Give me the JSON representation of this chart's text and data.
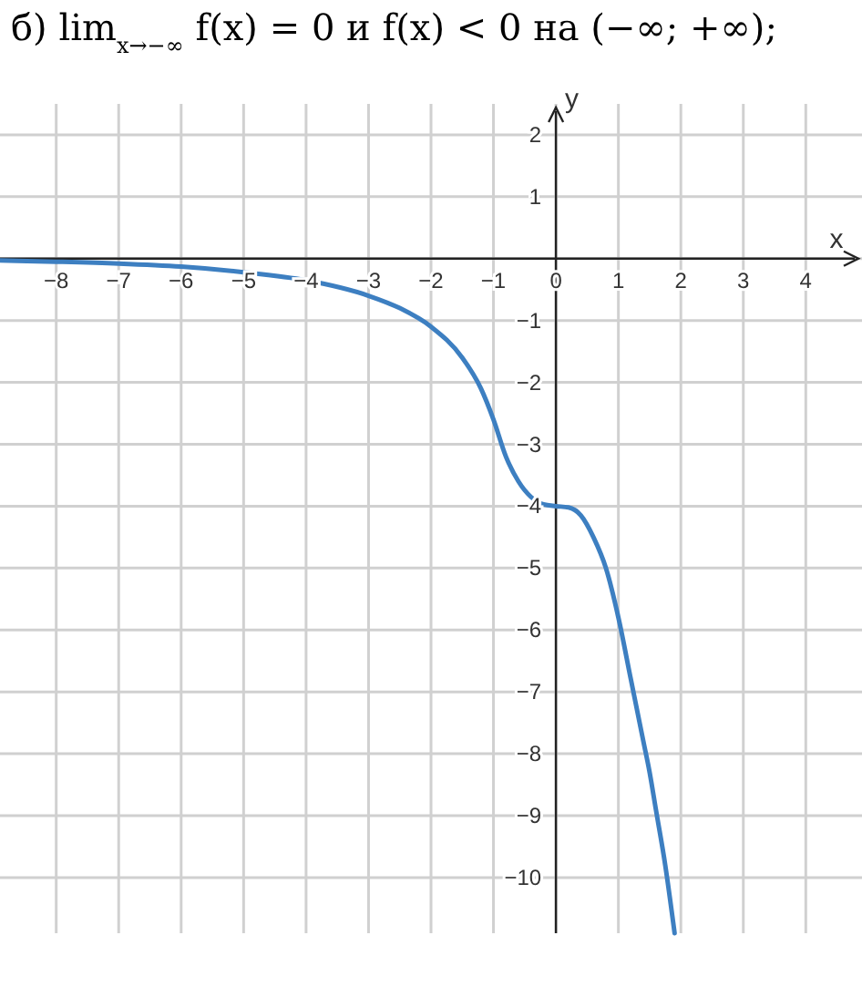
{
  "chart_data": {
    "type": "line",
    "title": "б) lim$_{x→−∞}$ f(x) = 0  и  f(x) < 0 на (−∞; +∞);",
    "xlabel": "x",
    "ylabel": "y",
    "x": [
      -8.9,
      -8,
      -7,
      -6,
      -5,
      -4,
      -3,
      -2.5,
      -2,
      -1.5,
      -1.2,
      -1,
      -0.8,
      -0.6,
      -0.4,
      -0.2,
      0,
      0.2,
      0.4,
      0.6,
      0.8,
      1,
      1.2,
      1.4,
      1.5,
      1.6,
      1.75,
      1.9
    ],
    "series": [
      {
        "color": "#3d7fc1",
        "values": [
          -0.03,
          -0.05,
          -0.08,
          -0.13,
          -0.22,
          -0.35,
          -0.6,
          -0.8,
          -1.1,
          -1.6,
          -2.1,
          -2.6,
          -3.2,
          -3.6,
          -3.85,
          -3.97,
          -4.0,
          -4.02,
          -4.15,
          -4.5,
          -5.0,
          -5.8,
          -6.8,
          -7.8,
          -8.3,
          -8.9,
          -9.8,
          -10.9
        ]
      }
    ],
    "xlim": [
      -8.9,
      4.9
    ],
    "ylim": [
      -10.9,
      2.5
    ],
    "xticks": [
      -8,
      -7,
      -6,
      -5,
      -4,
      -3,
      -2,
      -1,
      0,
      1,
      2,
      3,
      4
    ],
    "yticks": [
      -10,
      -9,
      -8,
      -7,
      -6,
      -5,
      -4,
      -3,
      -2,
      -1,
      {
        "value": 0,
        "label": null
      },
      1,
      2
    ],
    "grid": true,
    "line_style": "solid",
    "marker": "none"
  }
}
